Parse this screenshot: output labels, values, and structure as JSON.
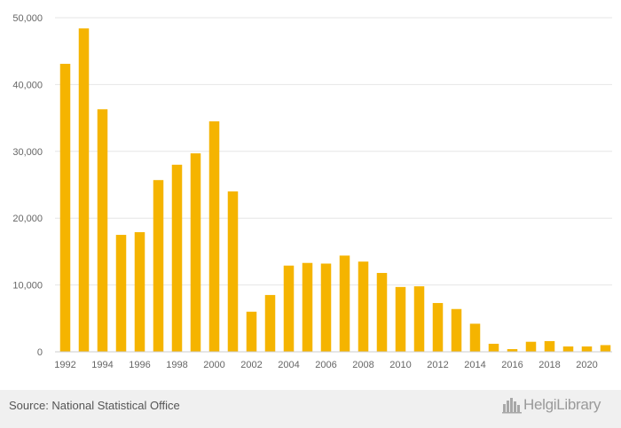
{
  "chart_data": {
    "type": "bar",
    "x": [
      1992,
      1993,
      1994,
      1995,
      1996,
      1997,
      1998,
      1999,
      2000,
      2001,
      2002,
      2003,
      2004,
      2005,
      2006,
      2007,
      2008,
      2009,
      2010,
      2011,
      2012,
      2013,
      2014,
      2015,
      2016,
      2017,
      2018,
      2019,
      2020,
      2021
    ],
    "values": [
      43100,
      48400,
      36300,
      17500,
      17900,
      25700,
      28000,
      29700,
      34500,
      24000,
      6000,
      8500,
      12900,
      13300,
      13200,
      14400,
      13500,
      11800,
      9700,
      9800,
      7300,
      6400,
      4200,
      1200,
      400,
      1500,
      1600,
      800,
      800,
      1000
    ],
    "x_tick_labels": [
      "1992",
      "1994",
      "1996",
      "1998",
      "2000",
      "2002",
      "2004",
      "2006",
      "2008",
      "2010",
      "2012",
      "2014",
      "2016",
      "2018",
      "2020"
    ],
    "y_tick_labels": [
      "0",
      "10,000",
      "20,000",
      "30,000",
      "40,000",
      "50,000"
    ],
    "y_ticks": [
      0,
      10000,
      20000,
      30000,
      40000,
      50000
    ],
    "ylim": [
      0,
      50000
    ],
    "title": "",
    "xlabel": "",
    "ylabel": "",
    "grid": true,
    "bar_color": "#f5b400",
    "grid_color": "#e6e6e6"
  },
  "footer": {
    "source": "Source: National Statistical Office",
    "logo_text": "HelgiLibrary",
    "logo_icon": "city-skyline-icon"
  }
}
